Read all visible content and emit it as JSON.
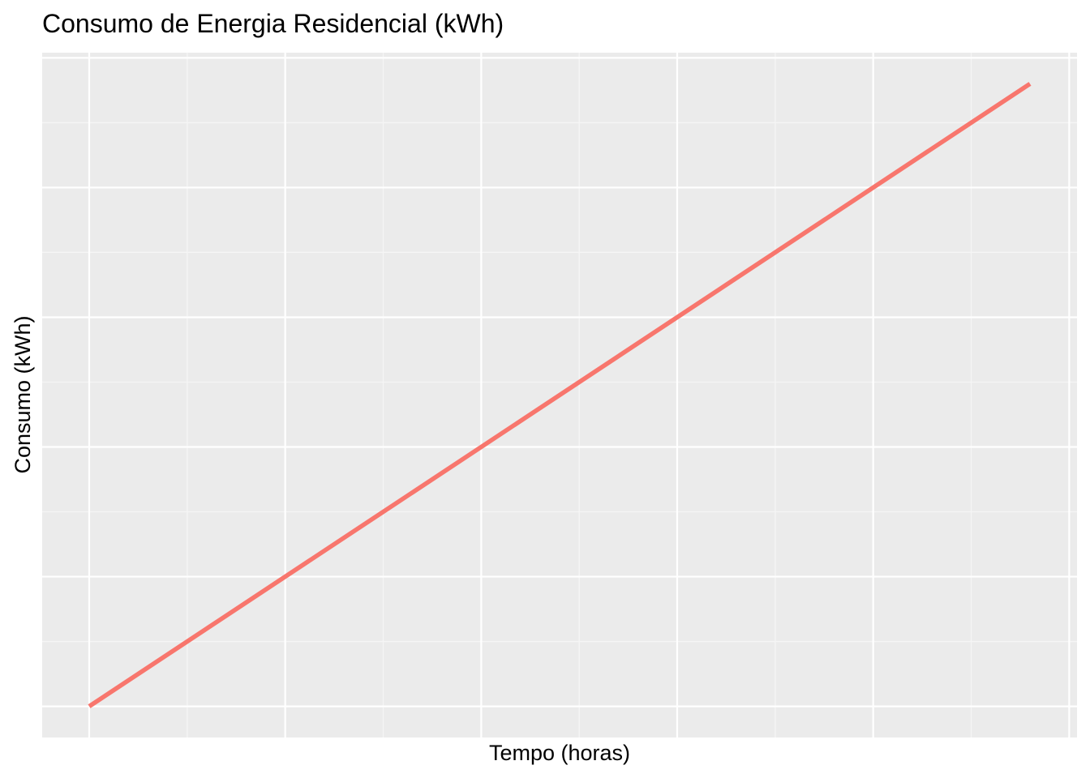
{
  "chart_data": {
    "type": "line",
    "title": "Consumo de Energia Residencial (kWh)",
    "xlabel": "Tempo (horas)",
    "ylabel": "Consumo (kWh)",
    "x_tick_labels_shown": false,
    "y_tick_labels_shown": false,
    "grid": true,
    "legend": "none",
    "series": [
      {
        "color": "#F8766D",
        "x": [
          0,
          9.6
        ],
        "y": [
          0,
          9.6
        ]
      }
    ],
    "xlim": [
      -0.48,
      10.08
    ],
    "ylim": [
      -0.48,
      10.08
    ],
    "colors": {
      "panel_background": "#EBEBEB",
      "grid_major": "#FFFFFF",
      "grid_minor": "#F5F5F5"
    }
  }
}
